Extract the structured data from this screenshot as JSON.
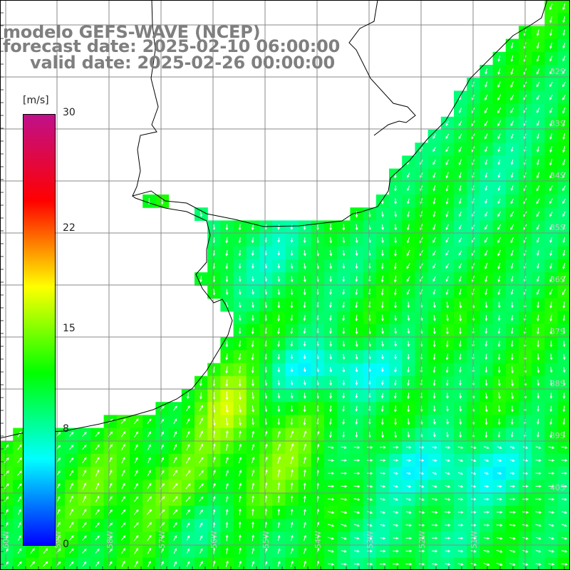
{
  "title": {
    "line1": "modelo GEFS-WAVE (NCEP)",
    "line2": "forecast date: 2025-02-10 06:00:00",
    "line3": "valid date: 2025-02-26 00:00:00"
  },
  "colorbar": {
    "unit": "[m/s]",
    "min": 0,
    "max": 30,
    "ticks": [
      "30",
      "22",
      "15",
      "8",
      "0"
    ],
    "tick_values": [
      30,
      22,
      15,
      8,
      0
    ],
    "stops": [
      "#0000ff",
      "#00ffff",
      "#00ff00",
      "#ffff00",
      "#ff0000",
      "#c0108a"
    ]
  },
  "grid": {
    "lat_labels": [
      "32S",
      "33S",
      "34S",
      "35S",
      "36S",
      "37S",
      "38S",
      "39S",
      "40S"
    ],
    "lon_labels": [
      "60W",
      "59W",
      "58W",
      "57W",
      "56W",
      "55W",
      "54W",
      "53W",
      "52W",
      "51W"
    ]
  },
  "colors": {
    "land": "#ffffff",
    "coast": "#000000",
    "gridline": "#888888",
    "arrow": "#ffffff",
    "title": "#7f7f7f"
  }
}
